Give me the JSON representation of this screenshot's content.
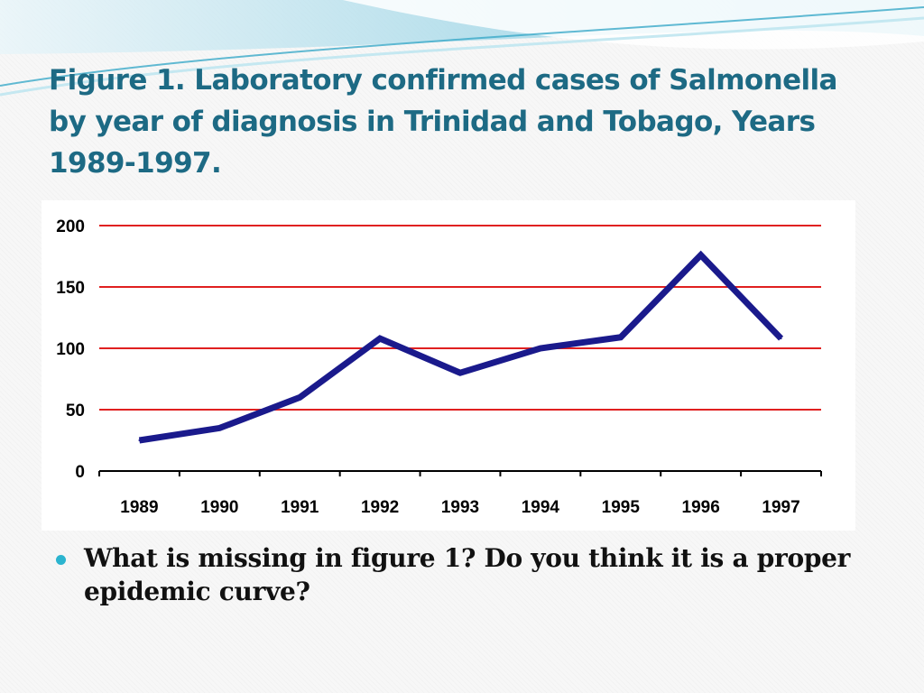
{
  "slide": {
    "title": "Figure 1. Laboratory confirmed cases of Salmonella by year of diagnosis in Trinidad and Tobago, Years 1989-1997.",
    "bullet": "What is missing in figure 1? Do you think it is a proper epidemic curve?"
  },
  "colors": {
    "title": "#1d6a84",
    "line": "#1a1a8c",
    "gridline": "#e02020",
    "bullet": "#2bb4cf",
    "wave_light": "#bfe6f0",
    "wave_dark": "#3aa9c8"
  },
  "chart_data": {
    "type": "line",
    "title": "",
    "xlabel": "",
    "ylabel": "",
    "categories": [
      "1989",
      "1990",
      "1991",
      "1992",
      "1993",
      "1994",
      "1995",
      "1996",
      "1997"
    ],
    "series": [
      {
        "values": [
          25,
          35,
          60,
          108,
          80,
          100,
          109,
          176,
          108
        ]
      }
    ],
    "ylim": [
      0,
      200
    ],
    "yticks": [
      0,
      50,
      100,
      150,
      200
    ],
    "grid": "horizontal",
    "legend": "none"
  }
}
